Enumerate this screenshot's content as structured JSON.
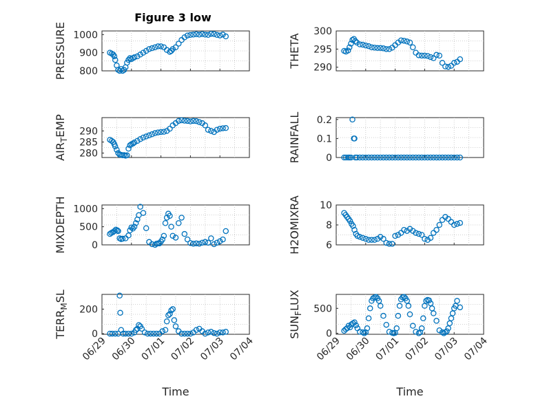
{
  "figure": {
    "title": "Figure 3 low",
    "marker_color": "#0072bd",
    "grid": "minor dotted",
    "x_tick_labels": [
      "06/29",
      "06/30",
      "07/01",
      "07/02",
      "07/03",
      "07/04"
    ]
  },
  "chart_data": [
    {
      "type": "scatter",
      "ylabel": "PRESSURE",
      "title": "Figure 3 low",
      "xlim": [
        0,
        5
      ],
      "ylim": [
        800,
        1020
      ],
      "yticks": [
        800,
        900,
        1000
      ],
      "series": [
        {
          "x": [
            0.27,
            0.33,
            0.38,
            0.42,
            0.45,
            0.5,
            0.55,
            0.6,
            0.65,
            0.7,
            0.75,
            0.8,
            0.85,
            0.9,
            0.95,
            1.0,
            1.05,
            1.1,
            1.2,
            1.3,
            1.4,
            1.5,
            1.6,
            1.7,
            1.8,
            1.9,
            2.0,
            2.1,
            2.2,
            2.3,
            2.35,
            2.4,
            2.5,
            2.6,
            2.7,
            2.8,
            2.9,
            3.0,
            3.1,
            3.2,
            3.3,
            3.4,
            3.5,
            3.6,
            3.7,
            3.8,
            3.9,
            4.0,
            4.1,
            4.2
          ],
          "y": [
            900,
            895,
            890,
            880,
            860,
            830,
            805,
            800,
            810,
            800,
            805,
            820,
            845,
            860,
            870,
            865,
            870,
            875,
            880,
            890,
            900,
            910,
            920,
            925,
            930,
            935,
            935,
            930,
            915,
            905,
            910,
            920,
            930,
            950,
            970,
            985,
            995,
            998,
            1000,
            1002,
            1000,
            1003,
            1000,
            998,
            1004,
            1003,
            998,
            995,
            1000,
            990
          ]
        }
      ]
    },
    {
      "type": "scatter",
      "ylabel": "THETA",
      "xlim": [
        0,
        5
      ],
      "ylim": [
        289,
        300
      ],
      "yticks": [
        290,
        295,
        300
      ],
      "series": [
        {
          "x": [
            0.27,
            0.33,
            0.4,
            0.45,
            0.5,
            0.55,
            0.6,
            0.65,
            0.7,
            0.8,
            0.9,
            1.0,
            1.1,
            1.2,
            1.3,
            1.4,
            1.5,
            1.6,
            1.7,
            1.8,
            1.9,
            2.0,
            2.1,
            2.2,
            2.3,
            2.4,
            2.5,
            2.6,
            2.7,
            2.8,
            2.9,
            3.0,
            3.1,
            3.2,
            3.3,
            3.4,
            3.5,
            3.6,
            3.7,
            3.8,
            3.9,
            4.0,
            4.1,
            4.2
          ],
          "y": [
            294.5,
            294.3,
            294.6,
            295.5,
            296.5,
            297.5,
            297.8,
            297.2,
            296.8,
            296.3,
            296.2,
            296,
            295.8,
            295.5,
            295.4,
            295.3,
            295.3,
            295.2,
            295,
            295,
            295.4,
            296.1,
            296.8,
            297.4,
            297.3,
            297.1,
            296.8,
            295.5,
            294,
            293.3,
            293.2,
            293.2,
            293.1,
            292.8,
            292.5,
            293.4,
            293.2,
            291.2,
            290.2,
            290.1,
            290.4,
            291.2,
            291.5,
            292.2
          ]
        }
      ]
    },
    {
      "type": "scatter",
      "ylabel": "AIR_TEMP",
      "ylabel_main": "AIR",
      "ylabel_sub": "T",
      "ylabel_rest": "EMP",
      "xlim": [
        0,
        5
      ],
      "ylim": [
        278,
        296
      ],
      "yticks": [
        280,
        285,
        290
      ],
      "series": [
        {
          "x": [
            0.27,
            0.33,
            0.38,
            0.42,
            0.45,
            0.5,
            0.55,
            0.6,
            0.65,
            0.7,
            0.75,
            0.8,
            0.85,
            0.9,
            0.95,
            1.0,
            1.05,
            1.1,
            1.2,
            1.3,
            1.4,
            1.5,
            1.6,
            1.7,
            1.8,
            1.9,
            2.0,
            2.1,
            2.2,
            2.3,
            2.4,
            2.5,
            2.6,
            2.7,
            2.8,
            2.9,
            3.0,
            3.1,
            3.2,
            3.3,
            3.4,
            3.5,
            3.6,
            3.7,
            3.8,
            3.9,
            4.0,
            4.1,
            4.2
          ],
          "y": [
            286,
            285.5,
            285,
            284,
            283,
            281.5,
            280,
            279.3,
            279.2,
            279,
            279.1,
            278.8,
            279,
            282,
            283.5,
            284,
            284.3,
            284.8,
            285.5,
            286.3,
            287,
            287.5,
            288,
            288.5,
            289,
            289.3,
            289.5,
            289.6,
            290,
            291,
            292.5,
            293.5,
            294.5,
            294.8,
            294.6,
            294.5,
            294.3,
            294.5,
            294.4,
            294,
            293.5,
            292.5,
            290.5,
            290,
            289.5,
            290.5,
            291,
            291.2,
            291.3
          ]
        }
      ]
    },
    {
      "type": "scatter",
      "ylabel": "RAINFALL",
      "xlim": [
        0,
        5
      ],
      "ylim": [
        0,
        0.21
      ],
      "yticks": [
        0,
        0.1,
        0.2
      ],
      "ytick_labels": [
        "0",
        "0.1",
        "0.2"
      ],
      "series": [
        {
          "x": [
            0.27,
            0.33,
            0.4,
            0.45,
            0.5,
            0.55,
            0.6,
            0.62,
            0.65,
            0.7,
            0.8,
            0.9,
            1.0,
            1.1,
            1.2,
            1.3,
            1.4,
            1.5,
            1.6,
            1.7,
            1.8,
            1.9,
            2.0,
            2.1,
            2.2,
            2.3,
            2.4,
            2.5,
            2.6,
            2.7,
            2.8,
            2.9,
            3.0,
            3.1,
            3.2,
            3.3,
            3.4,
            3.5,
            3.6,
            3.7,
            3.8,
            3.9,
            4.0,
            4.1,
            4.2
          ],
          "y": [
            0,
            0,
            0,
            0,
            0,
            0.2,
            0.1,
            0.1,
            0,
            0,
            0,
            0,
            0,
            0,
            0,
            0,
            0,
            0,
            0,
            0,
            0,
            0,
            0,
            0,
            0,
            0,
            0,
            0,
            0,
            0,
            0,
            0,
            0,
            0,
            0,
            0,
            0,
            0,
            0,
            0,
            0,
            0,
            0,
            0,
            0
          ]
        }
      ]
    },
    {
      "type": "scatter",
      "ylabel": "MIXDEPTH",
      "xlim": [
        0,
        5
      ],
      "ylim": [
        0,
        1100
      ],
      "yticks": [
        0,
        500,
        1000
      ],
      "series": [
        {
          "x": [
            0.27,
            0.32,
            0.37,
            0.42,
            0.47,
            0.52,
            0.55,
            0.6,
            0.65,
            0.7,
            0.8,
            0.9,
            0.95,
            1.0,
            1.05,
            1.1,
            1.15,
            1.2,
            1.25,
            1.3,
            1.4,
            1.5,
            1.6,
            1.7,
            1.8,
            1.85,
            1.9,
            1.95,
            2.0,
            2.05,
            2.1,
            2.15,
            2.2,
            2.25,
            2.3,
            2.35,
            2.4,
            2.5,
            2.6,
            2.7,
            2.8,
            2.9,
            3.0,
            3.1,
            3.2,
            3.3,
            3.4,
            3.5,
            3.6,
            3.7,
            3.8,
            3.9,
            4.0,
            4.1,
            4.2
          ],
          "y": [
            300,
            330,
            350,
            380,
            420,
            400,
            380,
            180,
            160,
            170,
            180,
            260,
            400,
            480,
            450,
            500,
            600,
            700,
            820,
            1050,
            880,
            460,
            80,
            20,
            0,
            30,
            40,
            40,
            90,
            150,
            250,
            600,
            750,
            860,
            800,
            500,
            250,
            200,
            600,
            750,
            300,
            150,
            50,
            30,
            40,
            30,
            60,
            80,
            60,
            180,
            20,
            60,
            100,
            150,
            380
          ]
        }
      ]
    },
    {
      "type": "scatter",
      "ylabel": "H2OMIXRA",
      "xlim": [
        0,
        5
      ],
      "ylim": [
        6,
        10
      ],
      "yticks": [
        6,
        8,
        10
      ],
      "series": [
        {
          "x": [
            0.27,
            0.32,
            0.37,
            0.42,
            0.47,
            0.52,
            0.57,
            0.62,
            0.67,
            0.72,
            0.8,
            0.9,
            1.0,
            1.1,
            1.2,
            1.3,
            1.4,
            1.5,
            1.6,
            1.7,
            1.8,
            1.9,
            2.0,
            2.1,
            2.2,
            2.3,
            2.4,
            2.5,
            2.6,
            2.7,
            2.8,
            2.9,
            3.0,
            3.1,
            3.2,
            3.3,
            3.4,
            3.5,
            3.6,
            3.7,
            3.8,
            3.9,
            4.0,
            4.1,
            4.2
          ],
          "y": [
            9.2,
            9.0,
            8.8,
            8.6,
            8.4,
            8.1,
            7.9,
            7.5,
            7.1,
            6.9,
            6.8,
            6.7,
            6.6,
            6.5,
            6.5,
            6.5,
            6.6,
            6.8,
            6.6,
            6.2,
            6.1,
            6.1,
            6.9,
            7.0,
            7.2,
            7.5,
            7.4,
            7.6,
            7.4,
            7.2,
            7.1,
            7.0,
            6.6,
            6.5,
            6.7,
            7.2,
            7.5,
            8.0,
            8.5,
            8.8,
            8.6,
            8.3,
            8.0,
            8.1,
            8.2
          ]
        }
      ]
    },
    {
      "type": "scatter",
      "ylabel": "TERR_MSL",
      "ylabel_main": "TERR",
      "ylabel_sub": "M",
      "ylabel_rest": "SL",
      "xlim": [
        0,
        5
      ],
      "ylim": [
        -5,
        320
      ],
      "yticks": [
        0,
        200
      ],
      "series": [
        {
          "x": [
            0.27,
            0.35,
            0.45,
            0.55,
            0.6,
            0.62,
            0.65,
            0.72,
            0.8,
            0.9,
            1.0,
            1.1,
            1.15,
            1.2,
            1.25,
            1.3,
            1.35,
            1.45,
            1.55,
            1.65,
            1.75,
            1.85,
            1.95,
            2.05,
            2.15,
            2.2,
            2.25,
            2.3,
            2.35,
            2.4,
            2.45,
            2.5,
            2.6,
            2.7,
            2.8,
            2.9,
            3.0,
            3.1,
            3.2,
            3.3,
            3.4,
            3.5,
            3.6,
            3.7,
            3.8,
            3.9,
            4.0,
            4.1,
            4.2
          ],
          "y": [
            0,
            0,
            0,
            0,
            310,
            170,
            30,
            0,
            0,
            0,
            0,
            10,
            30,
            40,
            70,
            60,
            40,
            10,
            0,
            0,
            0,
            0,
            0,
            20,
            30,
            100,
            150,
            160,
            190,
            200,
            110,
            60,
            20,
            0,
            0,
            0,
            0,
            10,
            30,
            40,
            20,
            0,
            10,
            15,
            5,
            0,
            10,
            10,
            15
          ]
        }
      ]
    },
    {
      "type": "scatter",
      "ylabel": "SUN_FLUX",
      "ylabel_main": "SUN",
      "ylabel_sub": "F",
      "ylabel_rest": "LUX",
      "xlim": [
        0,
        5
      ],
      "ylim": [
        -20,
        780
      ],
      "yticks": [
        0,
        500
      ],
      "series": [
        {
          "x": [
            0.27,
            0.32,
            0.37,
            0.42,
            0.47,
            0.52,
            0.57,
            0.62,
            0.67,
            0.72,
            0.8,
            0.9,
            0.95,
            1.0,
            1.05,
            1.1,
            1.15,
            1.2,
            1.25,
            1.3,
            1.35,
            1.4,
            1.45,
            1.5,
            1.6,
            1.7,
            1.8,
            1.9,
            1.95,
            2.0,
            2.05,
            2.1,
            2.15,
            2.2,
            2.25,
            2.3,
            2.35,
            2.4,
            2.45,
            2.5,
            2.6,
            2.7,
            2.8,
            2.85,
            2.9,
            2.95,
            3.0,
            3.05,
            3.1,
            3.15,
            3.2,
            3.25,
            3.3,
            3.4,
            3.5,
            3.6,
            3.65,
            3.7,
            3.75,
            3.8,
            3.85,
            3.9,
            3.95,
            4.0,
            4.05,
            4.1,
            4.2
          ],
          "y": [
            50,
            80,
            100,
            150,
            120,
            180,
            200,
            220,
            160,
            100,
            30,
            20,
            0,
            20,
            100,
            300,
            500,
            650,
            700,
            720,
            730,
            700,
            650,
            550,
            350,
            170,
            30,
            10,
            0,
            10,
            100,
            350,
            550,
            680,
            720,
            730,
            700,
            650,
            550,
            380,
            150,
            30,
            0,
            20,
            100,
            300,
            550,
            650,
            670,
            660,
            600,
            500,
            400,
            250,
            60,
            20,
            0,
            20,
            40,
            100,
            200,
            300,
            400,
            500,
            550,
            650,
            520
          ]
        }
      ]
    }
  ]
}
